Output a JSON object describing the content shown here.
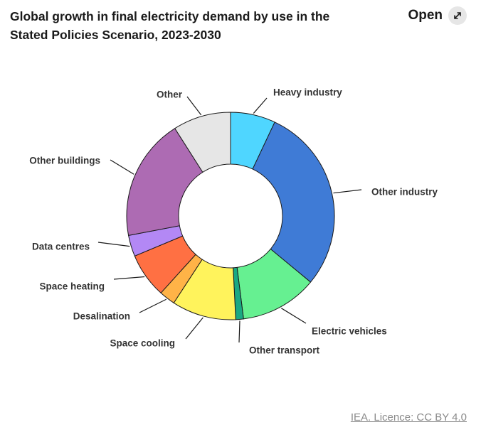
{
  "header": {
    "title": "Global growth in final electricity demand by use in the Stated Policies Scenario, 2023-2030",
    "open_label": "Open",
    "open_icon": "expand-arrows-icon"
  },
  "footer": {
    "licence": "IEA. Licence: CC BY 4.0"
  },
  "chart_data": {
    "type": "pie",
    "donut": true,
    "title": "Global growth in final electricity demand by use in the Stated Policies Scenario, 2023-2030",
    "legend": "none",
    "categories": [
      "Heavy industry",
      "Other industry",
      "Electric vehicles",
      "Other transport",
      "Space cooling",
      "Desalination",
      "Space heating",
      "Data centres",
      "Other buildings",
      "Other"
    ],
    "values": [
      7,
      29,
      12,
      1.2,
      10,
      2.5,
      7,
      3.3,
      19,
      9
    ],
    "colors": [
      "#4fd6ff",
      "#3f7bd6",
      "#66f091",
      "#1aa883",
      "#fff35c",
      "#ffb347",
      "#ff7043",
      "#b388f5",
      "#ad6bb3",
      "#e6e6e6"
    ]
  }
}
